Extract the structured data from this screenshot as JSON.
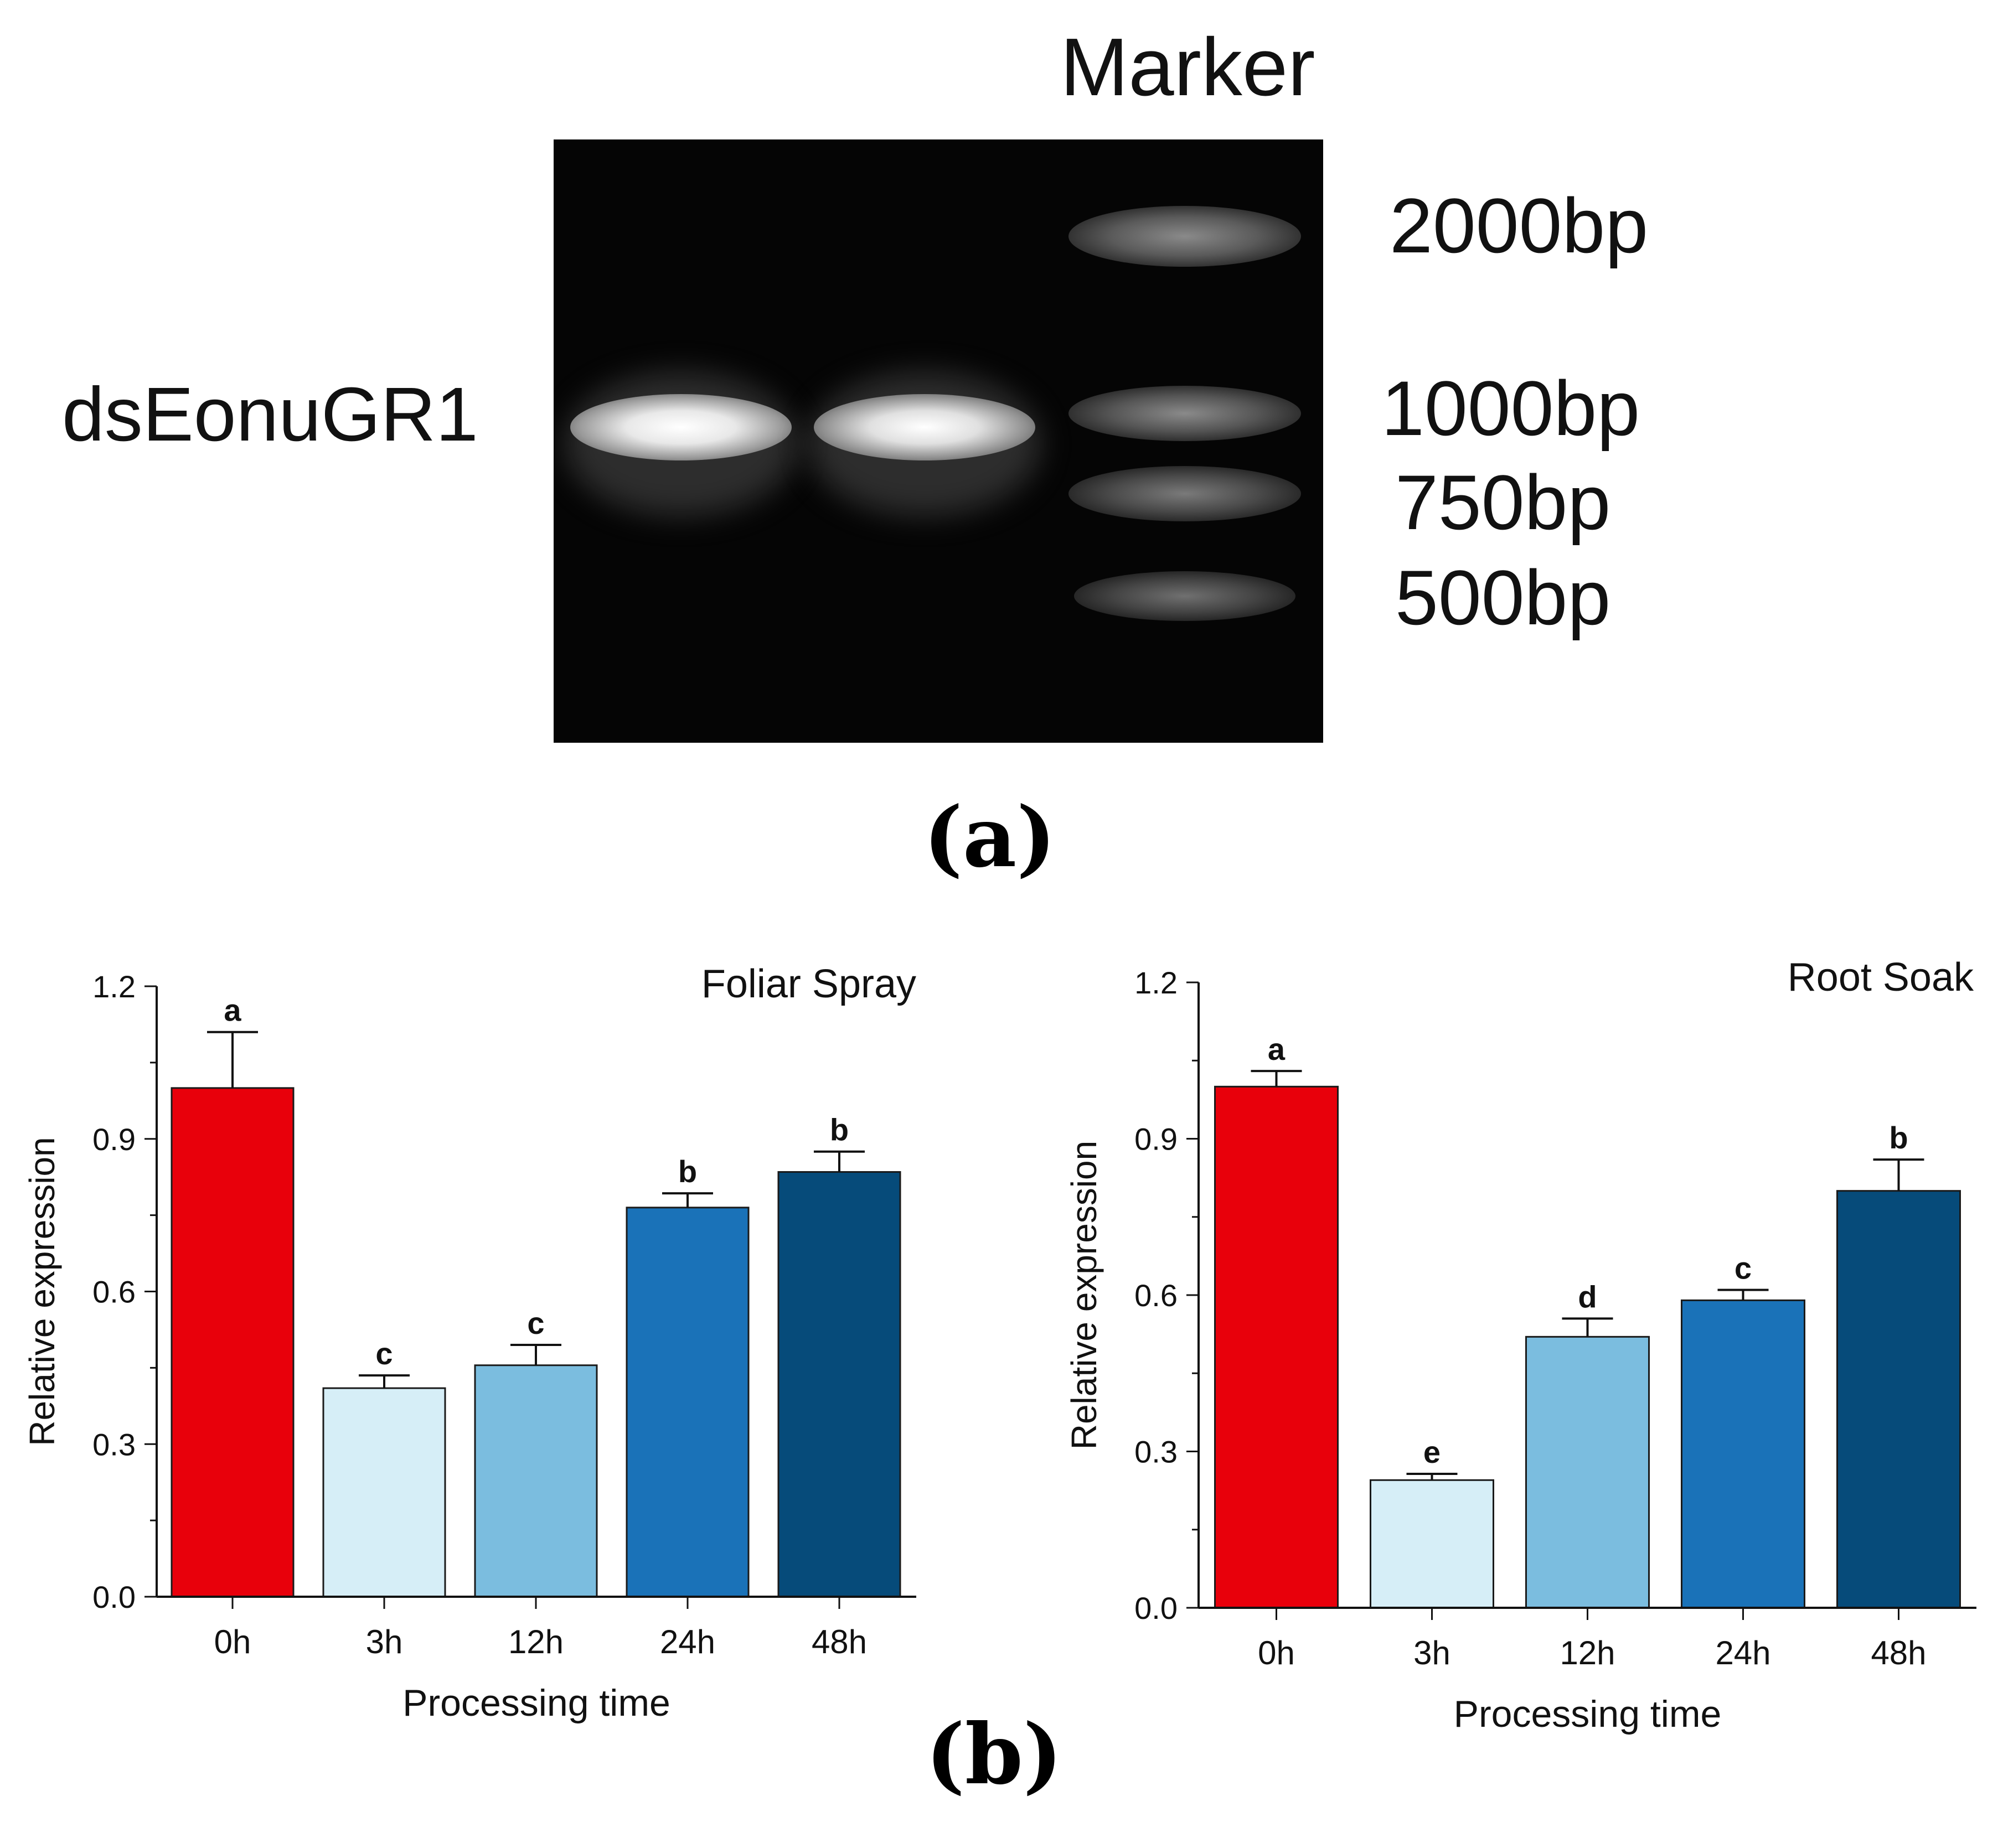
{
  "panel_a": {
    "marker_label": "Marker",
    "sample_label": "dsEonuGR1",
    "ladder_labels": [
      "2000bp",
      "1000bp",
      "750bp",
      "500bp"
    ],
    "caption": "(a)"
  },
  "panel_b": {
    "caption": "(b)"
  },
  "chart_data": [
    {
      "type": "bar",
      "title": "Foliar Spray",
      "xlabel": "Processing time",
      "ylabel": "Relative expression",
      "categories": [
        "0h",
        "3h",
        "12h",
        "24h",
        "48h"
      ],
      "values": [
        1.0,
        0.41,
        0.455,
        0.765,
        0.835
      ],
      "errors": [
        0.11,
        0.025,
        0.04,
        0.028,
        0.04
      ],
      "significance": [
        "a",
        "c",
        "c",
        "b",
        "b"
      ],
      "colors": [
        "#e8000b",
        "#d6eef7",
        "#7bbddf",
        "#1a72b8",
        "#064b7a"
      ],
      "ylim": [
        0,
        1.2
      ],
      "yticks": [
        "0.0",
        "0.3",
        "0.6",
        "0.9",
        "1.2"
      ]
    },
    {
      "type": "bar",
      "title": "Root Soak",
      "xlabel": "Processing time",
      "ylabel": "Relative expression",
      "categories": [
        "0h",
        "3h",
        "12h",
        "24h",
        "48h"
      ],
      "values": [
        1.0,
        0.245,
        0.52,
        0.59,
        0.8
      ],
      "errors": [
        0.03,
        0.012,
        0.035,
        0.02,
        0.06
      ],
      "significance": [
        "a",
        "e",
        "d",
        "c",
        "b"
      ],
      "colors": [
        "#e8000b",
        "#d6eef7",
        "#7bbddf",
        "#1a72b8",
        "#064b7a"
      ],
      "ylim": [
        0,
        1.2
      ],
      "yticks": [
        "0.0",
        "0.3",
        "0.6",
        "0.9",
        "1.2"
      ]
    }
  ]
}
